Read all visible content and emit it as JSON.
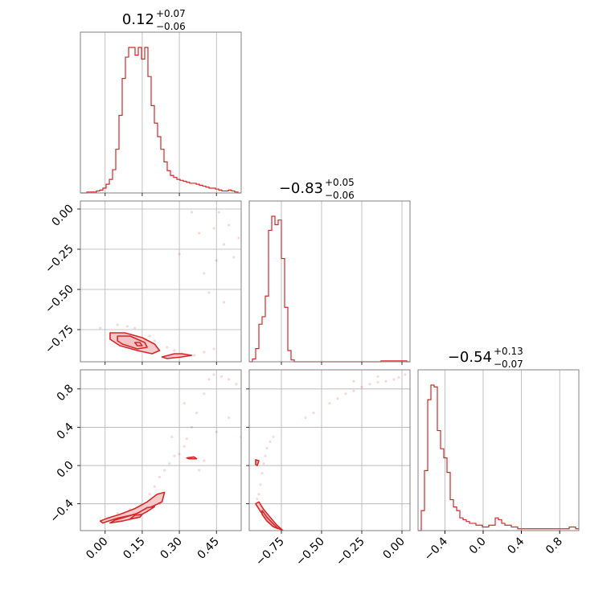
{
  "chart_data": {
    "type": "corner",
    "color": "#d62728",
    "fill_color": "#f4c2c3",
    "grid": true,
    "titles": [
      {
        "main": "0.12",
        "plus": "+0.07",
        "minus": "−0.06"
      },
      {
        "main": "−0.83",
        "plus": "+0.05",
        "minus": "−0.06"
      },
      {
        "main": "−0.54",
        "plus": "+0.13",
        "minus": "−0.07"
      }
    ],
    "params": [
      {
        "range": [
          -0.1,
          0.55
        ],
        "ticks": [
          0.0,
          0.15,
          0.3,
          0.45
        ],
        "tick_labels": [
          "0.00",
          "0.15",
          "0.30",
          "0.45"
        ]
      },
      {
        "range": [
          -0.95,
          0.05
        ],
        "ticks": [
          -0.75,
          -0.5,
          -0.25,
          0.0
        ],
        "tick_labels": [
          "−0.75",
          "−0.50",
          "−0.25",
          "0.00"
        ]
      },
      {
        "range": [
          -0.68,
          1.0
        ],
        "ticks": [
          -0.4,
          0.0,
          0.4,
          0.8
        ],
        "tick_labels": [
          "−0.4",
          "0.0",
          "0.4",
          "0.8"
        ]
      }
    ],
    "hist1d": [
      {
        "bins": [
          -0.1,
          0.55
        ],
        "values": [
          0,
          0,
          1,
          1,
          1,
          2,
          3,
          5,
          9,
          14,
          24,
          45,
          80,
          118,
          140,
          150,
          150,
          142,
          150,
          138,
          150,
          120,
          90,
          72,
          58,
          45,
          32,
          23,
          18,
          16,
          14,
          13,
          12,
          11,
          10,
          10,
          9,
          8,
          7,
          6,
          5,
          5,
          4,
          3,
          2,
          2,
          3,
          2,
          1,
          0
        ]
      },
      {
        "bins": [
          -0.95,
          0.05
        ],
        "values": [
          0,
          3,
          14,
          40,
          48,
          70,
          140,
          155,
          146,
          151,
          110,
          58,
          12,
          2,
          0,
          0,
          0,
          0,
          0,
          0,
          0,
          0,
          0,
          0,
          0,
          0,
          0,
          0,
          0,
          0,
          0,
          0,
          0,
          0,
          0,
          0,
          0,
          0,
          0,
          0,
          0,
          1,
          1,
          1,
          1,
          1,
          1,
          1,
          1,
          0
        ]
      },
      {
        "bins": [
          -0.68,
          1.0
        ],
        "values": [
          0,
          11,
          33,
          72,
          80,
          79,
          55,
          45,
          40,
          32,
          17,
          13,
          11,
          7,
          6,
          5,
          4,
          4,
          3,
          3,
          2,
          2,
          3,
          3,
          7,
          6,
          4,
          3,
          3,
          2,
          2,
          1,
          1,
          1,
          1,
          1,
          1,
          1,
          1,
          1,
          1,
          1,
          1,
          1,
          1,
          1,
          1,
          2,
          2,
          1
        ]
      }
    ],
    "pairs": [
      {
        "x_param": 0,
        "y_param": 1,
        "scatter": [
          [
            -0.02,
            -0.74
          ],
          [
            0.05,
            -0.72
          ],
          [
            0.09,
            -0.73
          ],
          [
            0.12,
            -0.74
          ],
          [
            0.18,
            -0.79
          ],
          [
            0.2,
            -0.82
          ],
          [
            0.25,
            -0.86
          ],
          [
            0.28,
            -0.88
          ],
          [
            0.31,
            -0.9
          ],
          [
            0.36,
            -0.91
          ],
          [
            0.4,
            -0.89
          ],
          [
            0.44,
            -0.87
          ],
          [
            0.42,
            -0.52
          ],
          [
            0.45,
            -0.32
          ],
          [
            0.48,
            -0.22
          ],
          [
            0.5,
            -0.1
          ],
          [
            0.38,
            -0.15
          ],
          [
            0.46,
            -0.02
          ],
          [
            0.52,
            -0.3
          ],
          [
            0.4,
            -0.4
          ],
          [
            0.35,
            -0.02
          ],
          [
            0.44,
            -0.12
          ],
          [
            0.54,
            -0.18
          ],
          [
            0.3,
            -0.28
          ],
          [
            0.48,
            -0.58
          ]
        ],
        "contours": [
          [
            [
              0.02,
              -0.77
            ],
            [
              0.08,
              -0.77
            ],
            [
              0.15,
              -0.8
            ],
            [
              0.2,
              -0.84
            ],
            [
              0.22,
              -0.88
            ],
            [
              0.19,
              -0.9
            ],
            [
              0.13,
              -0.88
            ],
            [
              0.06,
              -0.85
            ],
            [
              0.02,
              -0.81
            ]
          ],
          [
            [
              0.05,
              -0.79
            ],
            [
              0.1,
              -0.79
            ],
            [
              0.16,
              -0.83
            ],
            [
              0.17,
              -0.86
            ],
            [
              0.13,
              -0.87
            ],
            [
              0.07,
              -0.84
            ],
            [
              0.05,
              -0.82
            ]
          ],
          [
            [
              0.12,
              -0.83
            ],
            [
              0.14,
              -0.83
            ],
            [
              0.15,
              -0.85
            ],
            [
              0.13,
              -0.85
            ]
          ],
          [
            [
              0.23,
              -0.92
            ],
            [
              0.28,
              -0.9
            ],
            [
              0.31,
              -0.9
            ],
            [
              0.35,
              -0.91
            ],
            [
              0.31,
              -0.92
            ],
            [
              0.25,
              -0.93
            ]
          ]
        ]
      },
      {
        "x_param": 0,
        "y_param": 2,
        "scatter": [
          [
            0.18,
            -0.3
          ],
          [
            0.2,
            -0.22
          ],
          [
            0.22,
            -0.12
          ],
          [
            0.24,
            -0.05
          ],
          [
            0.26,
            0.02
          ],
          [
            0.28,
            0.1
          ],
          [
            0.3,
            0.12
          ],
          [
            0.32,
            0.2
          ],
          [
            0.33,
            0.28
          ],
          [
            0.35,
            0.4
          ],
          [
            0.37,
            0.55
          ],
          [
            0.4,
            0.75
          ],
          [
            0.42,
            0.9
          ],
          [
            0.44,
            0.95
          ],
          [
            0.47,
            0.93
          ],
          [
            0.5,
            0.9
          ],
          [
            0.53,
            0.85
          ],
          [
            0.38,
            -0.05
          ],
          [
            0.4,
            0.05
          ],
          [
            0.45,
            0.35
          ],
          [
            0.5,
            0.5
          ],
          [
            0.32,
            0.65
          ],
          [
            0.27,
            0.3
          ],
          [
            0.55,
            0.3
          ],
          [
            0.05,
            -0.5
          ],
          [
            0.1,
            -0.46
          ],
          [
            0.22,
            -0.4
          ]
        ],
        "contours": [
          [
            [
              -0.01,
              -0.6
            ],
            [
              0.05,
              -0.55
            ],
            [
              0.12,
              -0.51
            ],
            [
              0.18,
              -0.44
            ],
            [
              0.23,
              -0.38
            ],
            [
              0.24,
              -0.28
            ],
            [
              0.21,
              -0.3
            ],
            [
              0.17,
              -0.38
            ],
            [
              0.12,
              -0.45
            ],
            [
              0.06,
              -0.51
            ],
            [
              0.01,
              -0.55
            ],
            [
              -0.02,
              -0.58
            ]
          ],
          [
            [
              0.02,
              -0.6
            ],
            [
              0.07,
              -0.58
            ],
            [
              0.12,
              -0.55
            ],
            [
              0.17,
              -0.48
            ],
            [
              0.2,
              -0.43
            ],
            [
              0.17,
              -0.44
            ],
            [
              0.13,
              -0.5
            ],
            [
              0.08,
              -0.54
            ],
            [
              0.04,
              -0.57
            ]
          ],
          [
            [
              0.1,
              -0.56
            ],
            [
              0.14,
              -0.54
            ],
            [
              0.15,
              -0.51
            ],
            [
              0.12,
              -0.52
            ]
          ],
          [
            [
              0.33,
              0.08
            ],
            [
              0.36,
              0.09
            ],
            [
              0.37,
              0.07
            ],
            [
              0.34,
              0.07
            ]
          ]
        ]
      },
      {
        "x_param": 1,
        "y_param": 2,
        "scatter": [
          [
            -0.88,
            -0.2
          ],
          [
            -0.87,
            -0.08
          ],
          [
            -0.86,
            0.02
          ],
          [
            -0.85,
            0.1
          ],
          [
            -0.84,
            0.18
          ],
          [
            -0.82,
            0.25
          ],
          [
            -0.8,
            0.3
          ],
          [
            -0.89,
            -0.3
          ],
          [
            -0.9,
            -0.35
          ],
          [
            -0.45,
            0.65
          ],
          [
            -0.4,
            0.7
          ],
          [
            -0.35,
            0.75
          ],
          [
            -0.3,
            0.78
          ],
          [
            -0.25,
            0.82
          ],
          [
            -0.2,
            0.85
          ],
          [
            -0.15,
            0.87
          ],
          [
            -0.1,
            0.88
          ],
          [
            -0.05,
            0.9
          ],
          [
            -0.02,
            0.92
          ],
          [
            -0.55,
            0.55
          ],
          [
            -0.6,
            0.5
          ],
          [
            -0.3,
            0.88
          ],
          [
            -0.15,
            0.93
          ],
          [
            0.02,
            0.95
          ]
        ],
        "contours": [
          [
            [
              -0.89,
              -0.38
            ],
            [
              -0.86,
              -0.46
            ],
            [
              -0.82,
              -0.54
            ],
            [
              -0.78,
              -0.62
            ],
            [
              -0.74,
              -0.68
            ],
            [
              -0.79,
              -0.64
            ],
            [
              -0.84,
              -0.56
            ],
            [
              -0.88,
              -0.48
            ],
            [
              -0.91,
              -0.4
            ]
          ],
          [
            [
              -0.87,
              -0.47
            ],
            [
              -0.84,
              -0.54
            ],
            [
              -0.8,
              -0.61
            ],
            [
              -0.77,
              -0.66
            ],
            [
              -0.8,
              -0.64
            ],
            [
              -0.84,
              -0.58
            ],
            [
              -0.87,
              -0.51
            ]
          ],
          [
            [
              -0.9,
              0.0
            ],
            [
              -0.89,
              0.05
            ],
            [
              -0.91,
              0.06
            ],
            [
              -0.91,
              0.01
            ]
          ]
        ]
      }
    ]
  }
}
